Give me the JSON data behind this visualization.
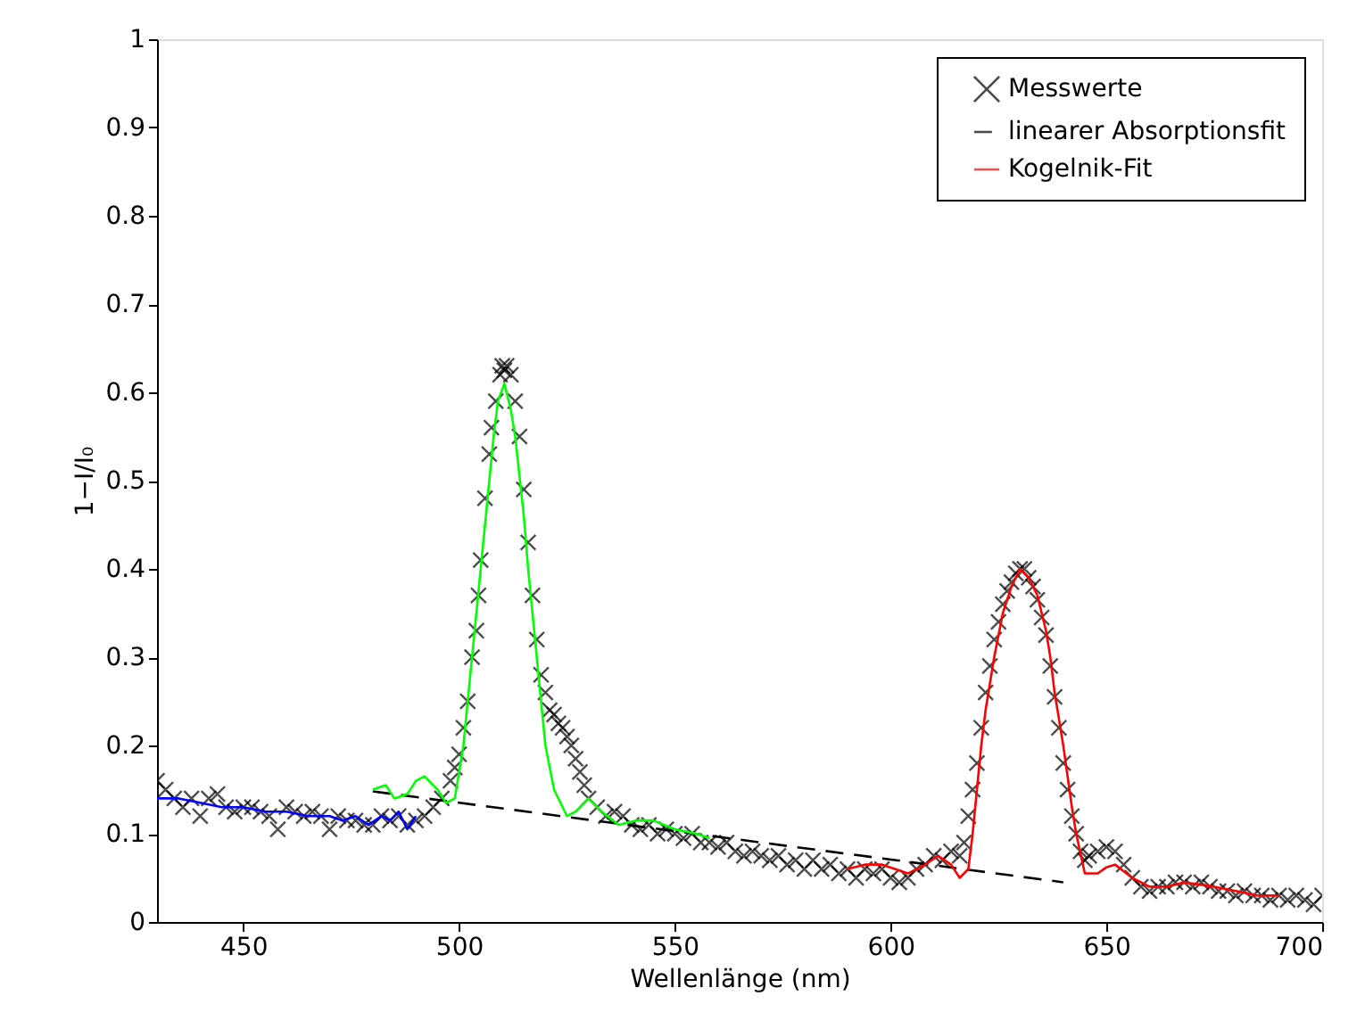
{
  "chart_data": {
    "type": "scatter",
    "xlabel": "Wellenlänge (nm)",
    "ylabel": "1−I/I₀",
    "xlim": [
      430,
      700
    ],
    "ylim": [
      0,
      1
    ],
    "xticks": [
      450,
      500,
      550,
      600,
      650,
      700
    ],
    "yticks": [
      0,
      0.1,
      0.2,
      0.3,
      0.4,
      0.5,
      0.6,
      0.7,
      0.8,
      0.9,
      1
    ],
    "grid": false,
    "legend": "top right",
    "series": [
      {
        "name": "Messwerte",
        "marker": "cross",
        "color": "#000000",
        "x": [
          430,
          432,
          434,
          436,
          438,
          440,
          442,
          444,
          446,
          448,
          450,
          452,
          454,
          456,
          458,
          460,
          462,
          464,
          466,
          468,
          470,
          472,
          474,
          476,
          478,
          480,
          482,
          484,
          486,
          488,
          490,
          492,
          494,
          496,
          498,
          499,
          500,
          501,
          502,
          503,
          504,
          504.5,
          505,
          506,
          507,
          507.5,
          508.5,
          509.5,
          510,
          510.5,
          511,
          512,
          513,
          514,
          515,
          516,
          517,
          518,
          519,
          520,
          521,
          522,
          523,
          524,
          525,
          526,
          527,
          528,
          529,
          530,
          532,
          534,
          536,
          538,
          540,
          542,
          544,
          546,
          548,
          550,
          552,
          554,
          556,
          558,
          560,
          562,
          564,
          566,
          568,
          570,
          572,
          574,
          576,
          578,
          580,
          582,
          584,
          586,
          588,
          590,
          592,
          594,
          596,
          598,
          600,
          602,
          604,
          606,
          608,
          610,
          612,
          614,
          616,
          617,
          618,
          619,
          620,
          621,
          622,
          623,
          624,
          625,
          626,
          627,
          628,
          629,
          630,
          631,
          632,
          633,
          634,
          635,
          636,
          637,
          638,
          639,
          640,
          641,
          642,
          643,
          644,
          645,
          646,
          648,
          650,
          652,
          654,
          656,
          658,
          660,
          662,
          664,
          666,
          668,
          670,
          672,
          674,
          676,
          678,
          680,
          682,
          684,
          686,
          688,
          690,
          692,
          694,
          696,
          698,
          700
        ],
        "values": [
          0.16,
          0.15,
          0.14,
          0.13,
          0.14,
          0.12,
          0.14,
          0.145,
          0.13,
          0.125,
          0.13,
          0.13,
          0.125,
          0.12,
          0.105,
          0.13,
          0.125,
          0.12,
          0.125,
          0.12,
          0.105,
          0.12,
          0.115,
          0.115,
          0.11,
          0.11,
          0.12,
          0.115,
          0.12,
          0.11,
          0.115,
          0.12,
          0.13,
          0.14,
          0.16,
          0.175,
          0.19,
          0.22,
          0.25,
          0.3,
          0.33,
          0.37,
          0.41,
          0.48,
          0.53,
          0.56,
          0.59,
          0.62,
          0.63,
          0.625,
          0.63,
          0.62,
          0.59,
          0.55,
          0.49,
          0.43,
          0.37,
          0.32,
          0.28,
          0.26,
          0.24,
          0.235,
          0.225,
          0.22,
          0.21,
          0.2,
          0.185,
          0.17,
          0.155,
          0.14,
          0.13,
          0.12,
          0.125,
          0.12,
          0.11,
          0.105,
          0.11,
          0.1,
          0.105,
          0.1,
          0.095,
          0.1,
          0.09,
          0.09,
          0.085,
          0.09,
          0.08,
          0.075,
          0.08,
          0.075,
          0.07,
          0.075,
          0.065,
          0.07,
          0.06,
          0.07,
          0.06,
          0.065,
          0.055,
          0.06,
          0.05,
          0.06,
          0.055,
          0.06,
          0.05,
          0.045,
          0.05,
          0.06,
          0.065,
          0.075,
          0.07,
          0.08,
          0.075,
          0.09,
          0.12,
          0.15,
          0.18,
          0.22,
          0.26,
          0.29,
          0.32,
          0.34,
          0.36,
          0.375,
          0.385,
          0.395,
          0.4,
          0.4,
          0.39,
          0.38,
          0.365,
          0.345,
          0.325,
          0.29,
          0.255,
          0.22,
          0.18,
          0.15,
          0.12,
          0.1,
          0.08,
          0.07,
          0.075,
          0.08,
          0.085,
          0.08,
          0.065,
          0.05,
          0.04,
          0.035,
          0.04,
          0.04,
          0.045,
          0.045,
          0.04,
          0.045,
          0.04,
          0.035,
          0.035,
          0.03,
          0.035,
          0.03,
          0.03,
          0.025,
          0.03,
          0.025,
          0.03,
          0.025,
          0.02,
          0.03
        ]
      },
      {
        "name": "linearer Absorptionsfit",
        "type": "line",
        "line_style": "dashed",
        "color": "#000000",
        "x": [
          480,
          640
        ],
        "values": [
          0.148,
          0.045
        ]
      },
      {
        "name": "Kogelnik-Fit",
        "type": "line",
        "line_style": "solid",
        "color": "#ff0000",
        "x": [
          590,
          594,
          598,
          601,
          604,
          608,
          611,
          614,
          616,
          618,
          619,
          620,
          621,
          622,
          624,
          626,
          628,
          630,
          632,
          634,
          636,
          637,
          638,
          640,
          642,
          643,
          645,
          648,
          650,
          652,
          656,
          660,
          664,
          668,
          675,
          680,
          685,
          690
        ],
        "values": [
          0.06,
          0.065,
          0.065,
          0.06,
          0.055,
          0.065,
          0.075,
          0.065,
          0.05,
          0.06,
          0.1,
          0.15,
          0.2,
          0.24,
          0.3,
          0.35,
          0.38,
          0.4,
          0.39,
          0.37,
          0.33,
          0.3,
          0.26,
          0.2,
          0.13,
          0.1,
          0.055,
          0.055,
          0.062,
          0.065,
          0.05,
          0.04,
          0.04,
          0.045,
          0.04,
          0.035,
          0.03,
          0.03
        ]
      },
      {
        "type": "line",
        "line_style": "solid",
        "color": "#00ff00",
        "x": [
          480,
          483,
          485,
          488,
          490,
          492,
          495,
          497,
          499,
          501,
          503,
          505,
          507,
          508,
          509,
          510.5,
          512,
          513,
          515,
          516,
          518,
          520,
          522,
          525,
          527,
          530,
          533,
          537,
          541,
          545,
          550,
          555,
          558
        ],
        "values": [
          0.15,
          0.155,
          0.14,
          0.145,
          0.16,
          0.165,
          0.15,
          0.135,
          0.14,
          0.2,
          0.3,
          0.4,
          0.5,
          0.55,
          0.59,
          0.61,
          0.58,
          0.55,
          0.46,
          0.4,
          0.3,
          0.2,
          0.15,
          0.12,
          0.125,
          0.14,
          0.125,
          0.11,
          0.115,
          0.115,
          0.105,
          0.1,
          0.095
        ]
      },
      {
        "type": "line",
        "line_style": "solid",
        "color": "#0000ff",
        "x": [
          430,
          435,
          440,
          445,
          450,
          455,
          460,
          465,
          470,
          473,
          476,
          479,
          482,
          484,
          486,
          488,
          490
        ],
        "values": [
          0.14,
          0.14,
          0.135,
          0.13,
          0.13,
          0.125,
          0.125,
          0.12,
          0.12,
          0.115,
          0.12,
          0.11,
          0.12,
          0.115,
          0.125,
          0.105,
          0.12
        ]
      }
    ]
  }
}
